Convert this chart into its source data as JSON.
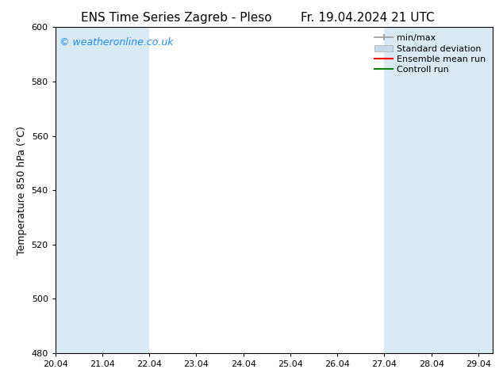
{
  "title_left": "ENS Time Series Zagreb - Pleso",
  "title_right": "Fr. 19.04.2024 21 UTC",
  "ylabel": "Temperature 850 hPa (°C)",
  "ylim": [
    480,
    600
  ],
  "yticks": [
    480,
    500,
    520,
    540,
    560,
    580,
    600
  ],
  "xtick_positions": [
    20.04,
    21.04,
    22.04,
    23.04,
    24.04,
    25.04,
    26.04,
    27.04,
    28.04,
    29.04
  ],
  "xtick_labels": [
    "20.04",
    "21.04",
    "22.04",
    "23.04",
    "24.04",
    "25.04",
    "26.04",
    "27.04",
    "28.04",
    "29.04"
  ],
  "x_min": 20.04,
  "x_max": 29.35,
  "background_color": "#ffffff",
  "plot_bg_color": "#ffffff",
  "shaded_bands": [
    {
      "x_start": 20.04,
      "x_end": 22.04,
      "color": "#daeaf5"
    },
    {
      "x_start": 27.04,
      "x_end": 29.35,
      "color": "#daeaf5"
    }
  ],
  "legend_entries": [
    {
      "label": "min/max",
      "color": "#aaaaaa",
      "type": "minmax"
    },
    {
      "label": "Standard deviation",
      "color": "#c5d9e8",
      "type": "patch"
    },
    {
      "label": "Ensemble mean run",
      "color": "#ff0000",
      "type": "line"
    },
    {
      "label": "Controll run",
      "color": "#008000",
      "type": "line"
    }
  ],
  "watermark_text": "© weatheronline.co.uk",
  "watermark_color": "#1e90ff",
  "title_fontsize": 11,
  "axis_fontsize": 9,
  "tick_fontsize": 8,
  "watermark_fontsize": 9,
  "legend_fontsize": 8
}
